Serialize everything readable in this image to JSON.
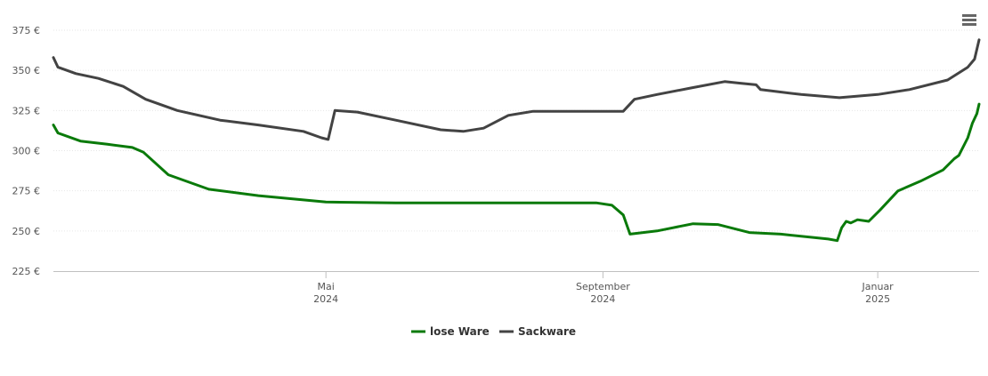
{
  "colors": {
    "lose": "#0a7a0a",
    "sack": "#434343",
    "grid": "#e6e6e6",
    "axis": "#c0c0c0"
  },
  "menu": {
    "icon": "hamburger-menu-icon"
  },
  "chart_data": {
    "type": "line",
    "title": "",
    "xlabel": "",
    "ylabel": "",
    "ylim": [
      225,
      375
    ],
    "y_ticks": [
      {
        "value": 225,
        "label": "225 €"
      },
      {
        "value": 250,
        "label": "250 €"
      },
      {
        "value": 275,
        "label": "275 €"
      },
      {
        "value": 300,
        "label": "300 €"
      },
      {
        "value": 325,
        "label": "325 €"
      },
      {
        "value": 350,
        "label": "350 €"
      },
      {
        "value": 375,
        "label": "375 €"
      }
    ],
    "xlim": [
      "2024-01-01",
      "2025-02-15"
    ],
    "x_ticks": [
      {
        "date": "2024-05-01",
        "month": "Mai",
        "year": "2024"
      },
      {
        "date": "2024-09-01",
        "month": "September",
        "year": "2024"
      },
      {
        "date": "2025-01-01",
        "month": "Januar",
        "year": "2025"
      }
    ],
    "grid": true,
    "legend": "bottom-center",
    "series": [
      {
        "name": "lose Ware",
        "color": "#0a7a0a",
        "points": [
          [
            "2024-01-01",
            316
          ],
          [
            "2024-01-03",
            311
          ],
          [
            "2024-01-13",
            306
          ],
          [
            "2024-01-25",
            304
          ],
          [
            "2024-02-05",
            302
          ],
          [
            "2024-02-10",
            299
          ],
          [
            "2024-02-21",
            285
          ],
          [
            "2024-03-10",
            276
          ],
          [
            "2024-04-01",
            272
          ],
          [
            "2024-05-01",
            268
          ],
          [
            "2024-06-01",
            267.5
          ],
          [
            "2024-08-29",
            267.5
          ],
          [
            "2024-09-05",
            266
          ],
          [
            "2024-09-10",
            260
          ],
          [
            "2024-09-13",
            248
          ],
          [
            "2024-09-25",
            250
          ],
          [
            "2024-10-11",
            254.5
          ],
          [
            "2024-10-22",
            254
          ],
          [
            "2024-11-05",
            249
          ],
          [
            "2024-11-19",
            248
          ],
          [
            "2024-12-10",
            245
          ],
          [
            "2024-12-14",
            244
          ],
          [
            "2024-12-16",
            252
          ],
          [
            "2024-12-18",
            256
          ],
          [
            "2024-12-20",
            255
          ],
          [
            "2024-12-23",
            257
          ],
          [
            "2024-12-28",
            256
          ],
          [
            "2025-01-02",
            263
          ],
          [
            "2025-01-10",
            275
          ],
          [
            "2025-01-20",
            281
          ],
          [
            "2025-01-30",
            288
          ],
          [
            "2025-02-04",
            295
          ],
          [
            "2025-02-06",
            297
          ],
          [
            "2025-02-10",
            308
          ],
          [
            "2025-02-12",
            317
          ],
          [
            "2025-02-14",
            323
          ],
          [
            "2025-02-15",
            329
          ]
        ]
      },
      {
        "name": "Sackware",
        "color": "#434343",
        "points": [
          [
            "2024-01-01",
            358
          ],
          [
            "2024-01-03",
            352
          ],
          [
            "2024-01-11",
            348
          ],
          [
            "2024-01-21",
            345
          ],
          [
            "2024-02-01",
            340
          ],
          [
            "2024-02-11",
            332
          ],
          [
            "2024-02-25",
            325
          ],
          [
            "2024-03-15",
            319
          ],
          [
            "2024-04-01",
            316
          ],
          [
            "2024-04-21",
            312
          ],
          [
            "2024-04-29",
            308
          ],
          [
            "2024-05-02",
            307
          ],
          [
            "2024-05-05",
            325
          ],
          [
            "2024-05-15",
            324
          ],
          [
            "2024-06-01",
            319
          ],
          [
            "2024-06-21",
            313
          ],
          [
            "2024-07-01",
            312
          ],
          [
            "2024-07-10",
            314
          ],
          [
            "2024-07-21",
            322
          ],
          [
            "2024-08-01",
            324.5
          ],
          [
            "2024-08-15",
            324.5
          ],
          [
            "2024-09-01",
            324.5
          ],
          [
            "2024-09-10",
            324.5
          ],
          [
            "2024-09-15",
            332
          ],
          [
            "2024-09-25",
            335
          ],
          [
            "2024-10-10",
            339
          ],
          [
            "2024-10-25",
            343
          ],
          [
            "2024-11-01",
            342
          ],
          [
            "2024-11-08",
            341
          ],
          [
            "2024-11-10",
            338
          ],
          [
            "2024-11-28",
            335
          ],
          [
            "2024-12-15",
            333
          ],
          [
            "2025-01-01",
            335
          ],
          [
            "2025-01-15",
            338
          ],
          [
            "2025-02-01",
            344
          ],
          [
            "2025-02-10",
            352
          ],
          [
            "2025-02-13",
            357
          ],
          [
            "2025-02-15",
            369
          ]
        ]
      }
    ]
  }
}
